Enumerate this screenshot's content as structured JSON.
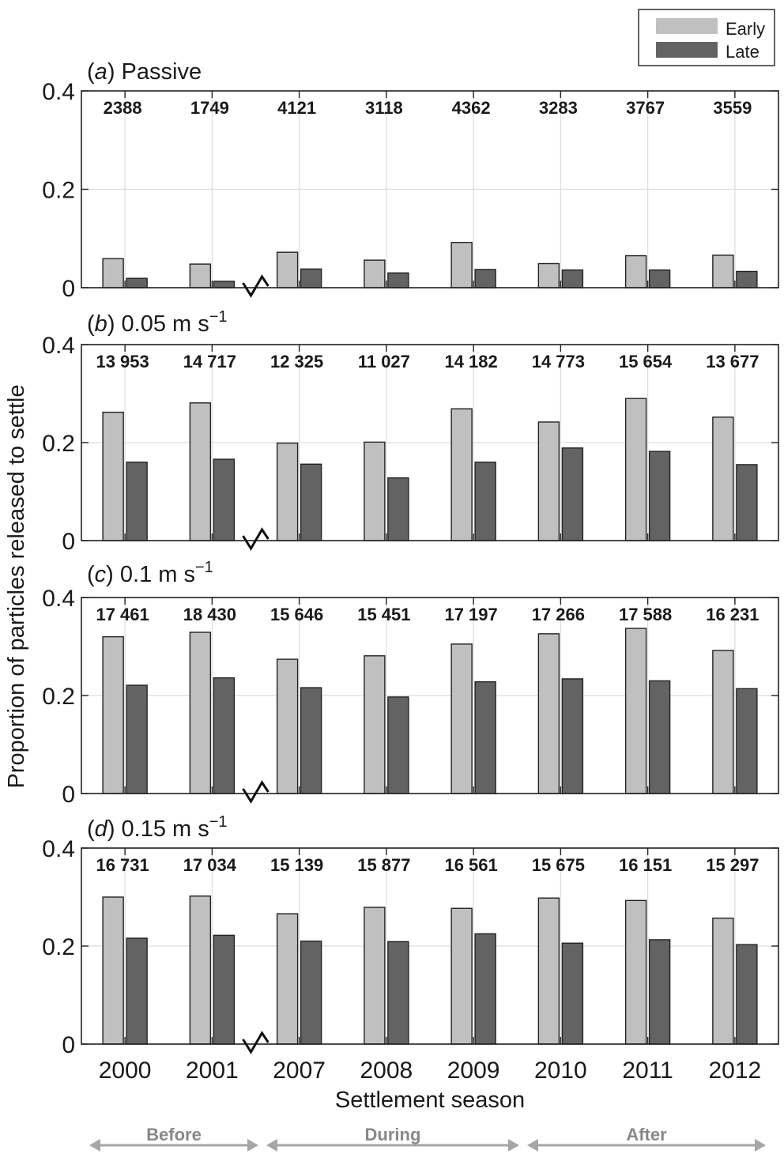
{
  "chart_data": {
    "type": "bar",
    "categories": [
      "2000",
      "2001",
      "2007",
      "2008",
      "2009",
      "2010",
      "2011",
      "2012"
    ],
    "xlabel": "Settlement season",
    "ylabel": "Proportion of particles released to settle",
    "ylim": [
      0,
      0.4
    ],
    "yticks": [
      "0",
      "0.2",
      "0.4"
    ],
    "grid": true,
    "legend": {
      "position": "top-right",
      "entries": [
        "Early",
        "Late"
      ]
    },
    "colors": {
      "early": "#c0c0c0",
      "late": "#636363",
      "grid": "#dddddd",
      "arrow": "#a6a6a6"
    },
    "axis_break": "between 2001 and 2007",
    "panels": [
      {
        "letter": "a",
        "label": "Passive",
        "sup": "",
        "counts": [
          "2388",
          "1749",
          "4121",
          "3118",
          "4362",
          "3283",
          "3767",
          "3559"
        ],
        "series": [
          {
            "name": "Early",
            "values": [
              0.059,
              0.048,
              0.072,
              0.056,
              0.092,
              0.049,
              0.065,
              0.066
            ]
          },
          {
            "name": "Late",
            "values": [
              0.019,
              0.013,
              0.038,
              0.03,
              0.037,
              0.036,
              0.036,
              0.033
            ]
          }
        ]
      },
      {
        "letter": "b",
        "label": "0.05 m s",
        "sup": "−1",
        "counts": [
          "13 953",
          "14 717",
          "12 325",
          "11 027",
          "14 182",
          "14 773",
          "15 654",
          "13 677"
        ],
        "series": [
          {
            "name": "Early",
            "values": [
              0.262,
              0.281,
              0.199,
              0.201,
              0.269,
              0.242,
              0.29,
              0.252
            ]
          },
          {
            "name": "Late",
            "values": [
              0.16,
              0.166,
              0.156,
              0.128,
              0.16,
              0.189,
              0.182,
              0.155
            ]
          }
        ]
      },
      {
        "letter": "c",
        "label": "0.1 m s",
        "sup": "−1",
        "counts": [
          "17 461",
          "18 430",
          "15 646",
          "15 451",
          "17 197",
          "17 266",
          "17 588",
          "16 231"
        ],
        "series": [
          {
            "name": "Early",
            "values": [
              0.32,
              0.329,
              0.274,
              0.281,
              0.305,
              0.326,
              0.337,
              0.292
            ]
          },
          {
            "name": "Late",
            "values": [
              0.221,
              0.236,
              0.216,
              0.197,
              0.228,
              0.234,
              0.23,
              0.214
            ]
          }
        ]
      },
      {
        "letter": "d",
        "label": "0.15 m s",
        "sup": "−1",
        "counts": [
          "16 731",
          "17 034",
          "15 139",
          "15 877",
          "16 561",
          "15 675",
          "16 151",
          "15 297"
        ],
        "series": [
          {
            "name": "Early",
            "values": [
              0.3,
              0.302,
              0.266,
              0.279,
              0.277,
              0.298,
              0.293,
              0.257
            ]
          },
          {
            "name": "Late",
            "values": [
              0.216,
              0.222,
              0.21,
              0.209,
              0.225,
              0.206,
              0.213,
              0.203
            ]
          }
        ]
      }
    ],
    "periods": [
      "Before",
      "During",
      "After"
    ]
  }
}
